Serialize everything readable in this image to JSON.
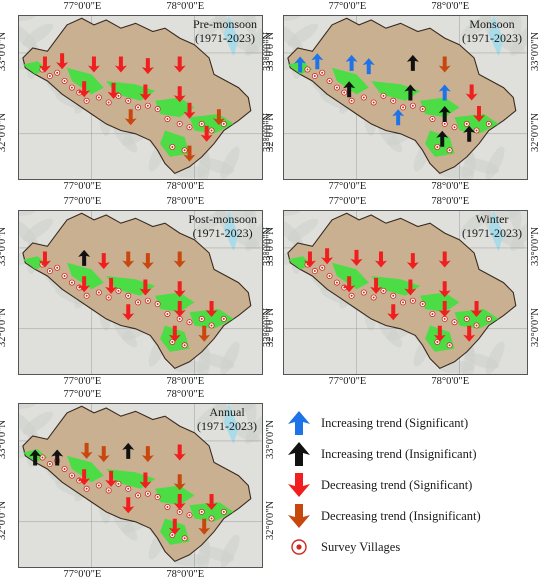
{
  "colors": {
    "increasing_significant": "#1e73e8",
    "increasing_insignificant": "#111111",
    "decreasing_significant": "#f01e1e",
    "decreasing_insignificant": "#c8470f",
    "village": "#d0281e"
  },
  "coords": {
    "lon_left": "77°0'0\"E",
    "lon_right": "78°0'0\"E",
    "lat_top": "33°0'0\"N",
    "lat_bottom": "32°0'0\"N"
  },
  "panels": [
    {
      "id": "pre-monsoon",
      "season": "Pre-monsoon",
      "period": "(1971-2023)",
      "arrows": [
        [
          "ds",
          0.11,
          0.3
        ],
        [
          "ds",
          0.18,
          0.28
        ],
        [
          "ds",
          0.31,
          0.3
        ],
        [
          "ds",
          0.42,
          0.3
        ],
        [
          "ds",
          0.53,
          0.31
        ],
        [
          "ds",
          0.66,
          0.3
        ],
        [
          "ds",
          0.27,
          0.45
        ],
        [
          "ds",
          0.39,
          0.46
        ],
        [
          "ds",
          0.52,
          0.47
        ],
        [
          "ds",
          0.66,
          0.48
        ],
        [
          "di",
          0.46,
          0.62
        ],
        [
          "ds",
          0.7,
          0.58
        ],
        [
          "di",
          0.82,
          0.62
        ],
        [
          "ds",
          0.77,
          0.72
        ],
        [
          "di",
          0.7,
          0.84
        ]
      ]
    },
    {
      "id": "monsoon",
      "season": "Monsoon",
      "period": "(1971-2023)",
      "arrows": [
        [
          "is",
          0.07,
          0.3
        ],
        [
          "is",
          0.14,
          0.28
        ],
        [
          "is",
          0.28,
          0.29
        ],
        [
          "is",
          0.35,
          0.31
        ],
        [
          "ii",
          0.53,
          0.29
        ],
        [
          "di",
          0.66,
          0.3
        ],
        [
          "ii",
          0.27,
          0.45
        ],
        [
          "ii",
          0.52,
          0.47
        ],
        [
          "is",
          0.66,
          0.47
        ],
        [
          "ds",
          0.77,
          0.47
        ],
        [
          "is",
          0.47,
          0.62
        ],
        [
          "ii",
          0.66,
          0.6
        ],
        [
          "ds",
          0.8,
          0.6
        ],
        [
          "ii",
          0.65,
          0.75
        ],
        [
          "ii",
          0.76,
          0.72
        ]
      ]
    },
    {
      "id": "post-monsoon",
      "season": "Post-monsoon",
      "period": "(1971-2023)",
      "arrows": [
        [
          "ds",
          0.11,
          0.3
        ],
        [
          "ii",
          0.27,
          0.29
        ],
        [
          "ds",
          0.35,
          0.31
        ],
        [
          "di",
          0.45,
          0.3
        ],
        [
          "di",
          0.53,
          0.31
        ],
        [
          "di",
          0.66,
          0.3
        ],
        [
          "ds",
          0.27,
          0.45
        ],
        [
          "ds",
          0.38,
          0.46
        ],
        [
          "ds",
          0.52,
          0.47
        ],
        [
          "ds",
          0.66,
          0.48
        ],
        [
          "ds",
          0.45,
          0.62
        ],
        [
          "ds",
          0.66,
          0.6
        ],
        [
          "ds",
          0.79,
          0.6
        ],
        [
          "ds",
          0.64,
          0.75
        ],
        [
          "di",
          0.76,
          0.75
        ]
      ]
    },
    {
      "id": "winter",
      "season": "Winter",
      "period": "(1971-2023)",
      "arrows": [
        [
          "ds",
          0.11,
          0.3
        ],
        [
          "ds",
          0.18,
          0.28
        ],
        [
          "ds",
          0.3,
          0.29
        ],
        [
          "ds",
          0.4,
          0.3
        ],
        [
          "ds",
          0.53,
          0.31
        ],
        [
          "ds",
          0.66,
          0.3
        ],
        [
          "ds",
          0.27,
          0.45
        ],
        [
          "ds",
          0.38,
          0.46
        ],
        [
          "ds",
          0.52,
          0.47
        ],
        [
          "ds",
          0.66,
          0.48
        ],
        [
          "ds",
          0.45,
          0.62
        ],
        [
          "ds",
          0.66,
          0.6
        ],
        [
          "ds",
          0.79,
          0.6
        ],
        [
          "ds",
          0.64,
          0.75
        ],
        [
          "ds",
          0.76,
          0.75
        ]
      ]
    },
    {
      "id": "annual",
      "season": "Annual",
      "period": "(1971-2023)",
      "arrows": [
        [
          "ii",
          0.07,
          0.33
        ],
        [
          "ii",
          0.16,
          0.33
        ],
        [
          "di",
          0.28,
          0.29
        ],
        [
          "di",
          0.35,
          0.31
        ],
        [
          "ii",
          0.45,
          0.29
        ],
        [
          "di",
          0.53,
          0.31
        ],
        [
          "ds",
          0.66,
          0.3
        ],
        [
          "ds",
          0.27,
          0.45
        ],
        [
          "ds",
          0.38,
          0.46
        ],
        [
          "ds",
          0.52,
          0.47
        ],
        [
          "di",
          0.66,
          0.48
        ],
        [
          "ds",
          0.45,
          0.62
        ],
        [
          "ds",
          0.66,
          0.6
        ],
        [
          "ds",
          0.79,
          0.6
        ],
        [
          "ds",
          0.64,
          0.75
        ],
        [
          "di",
          0.76,
          0.75
        ]
      ]
    }
  ],
  "legend": [
    {
      "key": "is",
      "label": "Increasing trend (Significant)"
    },
    {
      "key": "ii",
      "label": "Increasing trend (Insignificant)"
    },
    {
      "key": "ds",
      "label": "Decreasing trend (Significant)"
    },
    {
      "key": "di",
      "label": "Decreasing trend (Insignificant)"
    },
    {
      "key": "village",
      "label": "Survey Villages"
    }
  ]
}
